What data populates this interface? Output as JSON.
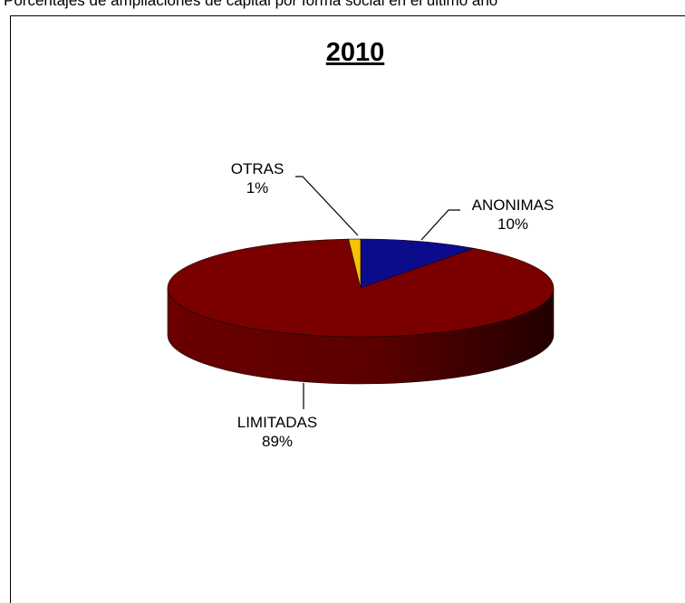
{
  "page": {
    "caption": "Porcentajes de ampliaciones de capital por forma social en el último año"
  },
  "chart_data": {
    "type": "pie",
    "title": "2010",
    "slices": [
      {
        "name": "ANONIMAS",
        "value": 10,
        "percent_label": "10%",
        "color": "#0b0b8c"
      },
      {
        "name": "LIMITADAS",
        "value": 89,
        "percent_label": "89%",
        "color": "#7a0000"
      },
      {
        "name": "OTRAS",
        "value": 1,
        "percent_label": "1%",
        "color": "#f5c400"
      }
    ],
    "style": "3d-exploded",
    "legend": "none",
    "labels": "outside-with-leader-lines"
  }
}
